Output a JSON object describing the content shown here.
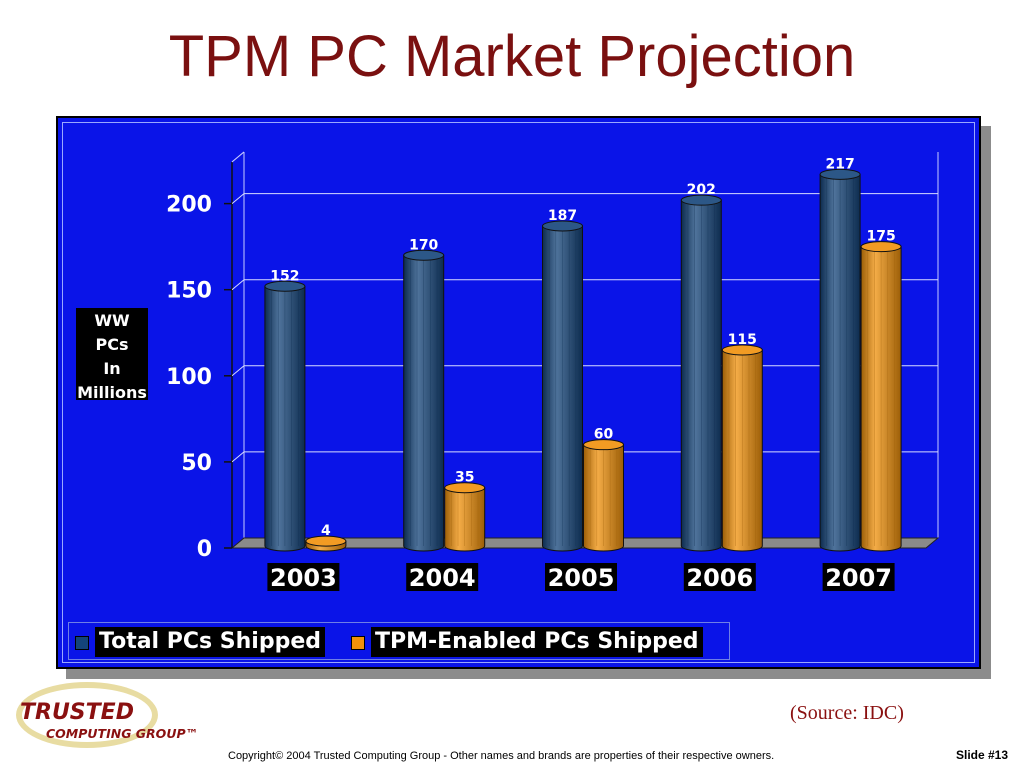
{
  "slide": {
    "title": "TPM PC Market Projection",
    "source_note": "(Source: IDC)",
    "copyright": "Copyright© 2004 Trusted Computing Group - Other names and brands are properties of their respective owners.",
    "slide_number": "Slide #13",
    "logo": {
      "line1": "TRUSTED",
      "line2": "COMPUTING GROUP™"
    }
  },
  "chart_data": {
    "type": "bar",
    "title": "",
    "ylabel_lines": [
      "WW",
      "PCs",
      "In",
      "Millions"
    ],
    "xlabel": "",
    "categories": [
      "2003",
      "2004",
      "2005",
      "2006",
      "2007"
    ],
    "series": [
      {
        "name": "Total PCs Shipped",
        "values": [
          152,
          170,
          187,
          202,
          217
        ],
        "color": "#14447a"
      },
      {
        "name": "TPM-Enabled PCs Shipped",
        "values": [
          4,
          35,
          60,
          115,
          175
        ],
        "color": "#f0900a"
      }
    ],
    "ylim": [
      0,
      230
    ],
    "yticks": [
      0,
      50,
      100,
      150,
      200
    ],
    "grid": true,
    "legend_position": "bottom",
    "colors": {
      "background": "#0a14e8",
      "title": "#7a1010",
      "grid": "#d8dcff"
    }
  }
}
